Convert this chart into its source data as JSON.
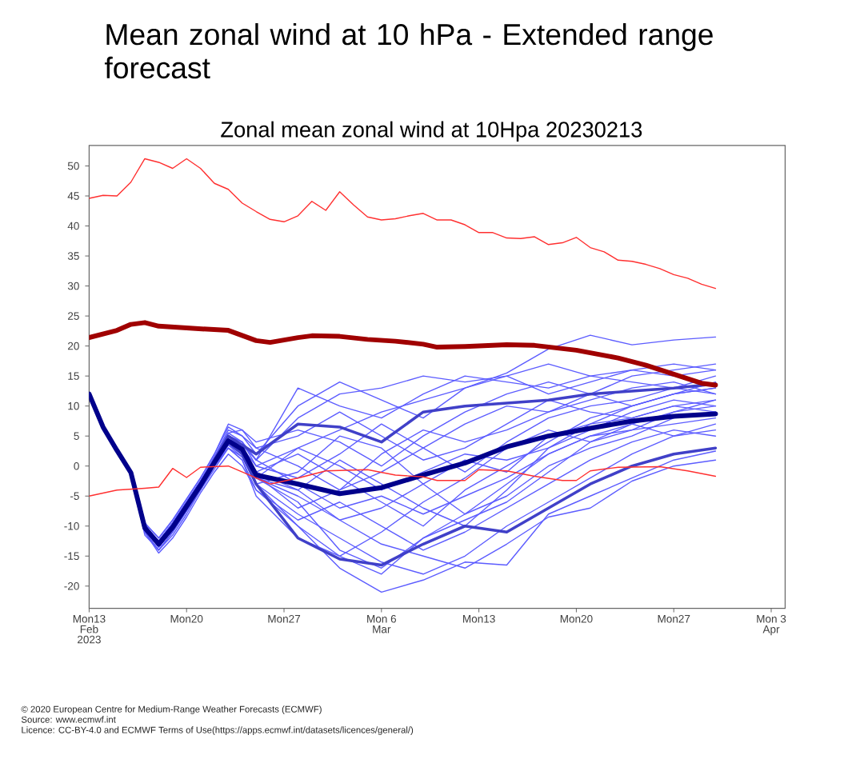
{
  "chart_data": {
    "type": "line",
    "title": "Mean zonal wind at 10 hPa - Extended range forecast",
    "subtitle": "Zonal mean zonal wind at 10Hpa 20230213",
    "annotations": [
      "© 2020 European Centre for Medium-Range Weather Forecasts (ECMWF)",
      "Source: www.ecmwf.int",
      "Licence: CC-BY-4.0 and ECMWF Terms of Use(https://apps.ecmwf.int/datasets/licences/general/)"
    ],
    "xlim": [
      "2023-02-13",
      "2023-04-04"
    ],
    "ylim": [
      -23.7,
      53.4
    ],
    "xticks": [
      {
        "value": "2023-02-13",
        "label": "Mon13 Feb 2023"
      },
      {
        "value": "2023-02-20",
        "label": "Mon20"
      },
      {
        "value": "2023-02-27",
        "label": "Mon27"
      },
      {
        "value": "2023-03-06",
        "label": "Mon 6 Mar"
      },
      {
        "value": "2023-03-13",
        "label": "Mon13"
      },
      {
        "value": "2023-03-20",
        "label": "Mon20"
      },
      {
        "value": "2023-03-27",
        "label": "Mon27"
      },
      {
        "value": "2023-04-03",
        "label": "Mon 3 Apr"
      }
    ],
    "yticks": [
      -20,
      -15,
      -10,
      -5,
      0,
      5,
      10,
      15,
      20,
      25,
      30,
      35,
      40,
      45,
      50
    ],
    "x": [
      "2023-02-13",
      "2023-02-14",
      "2023-02-15",
      "2023-02-16",
      "2023-02-17",
      "2023-02-18",
      "2023-02-19",
      "2023-02-20",
      "2023-02-21",
      "2023-02-22",
      "2023-02-23",
      "2023-02-24",
      "2023-02-25",
      "2023-02-28",
      "2023-03-03",
      "2023-03-06",
      "2023-03-09",
      "2023-03-12",
      "2023-03-15",
      "2023-03-18",
      "2023-03-21",
      "2023-03-24",
      "2023-03-27",
      "2023-03-30"
    ],
    "series": [
      {
        "color": "#5c5cff",
        "values": [
          null,
          null,
          null,
          -1.2,
          -10,
          -13.5,
          -10,
          -6.5,
          -3,
          1,
          5,
          3,
          -2,
          -6,
          -14,
          -17,
          -12,
          -8,
          -3,
          2,
          5,
          7,
          9,
          10
        ]
      },
      {
        "color": "#5c5cff",
        "values": [
          null,
          null,
          null,
          -0.8,
          -9.5,
          -12,
          -9,
          -5.5,
          -2,
          2,
          6.5,
          5,
          2,
          10,
          14,
          11,
          8,
          13,
          15,
          12,
          14,
          16,
          15,
          16
        ]
      },
      {
        "color": "#5c5cff",
        "values": [
          null,
          null,
          null,
          -1.4,
          -11,
          -14.5,
          -12,
          -8.5,
          -4.5,
          -1,
          2,
          0,
          -4,
          -10,
          -17,
          -21,
          -19,
          -16,
          -16.5,
          -8,
          -5,
          -2,
          1,
          2.5
        ]
      },
      {
        "color": "#5c5cff",
        "values": [
          null,
          null,
          null,
          -1,
          -10.5,
          -13,
          -10.5,
          -7,
          -3.5,
          0.5,
          4,
          2,
          -1,
          2,
          -2,
          -6,
          -10,
          -4,
          0,
          4,
          8,
          10,
          12,
          13
        ]
      },
      {
        "color": "#5c5cff",
        "values": [
          null,
          null,
          null,
          -1.1,
          -10,
          -12.5,
          -9.5,
          -6,
          -2.5,
          1.5,
          5.5,
          6,
          4,
          6,
          4,
          0,
          5,
          9,
          12,
          14,
          12,
          10,
          12,
          14
        ]
      },
      {
        "color": "#5c5cff",
        "values": [
          null,
          null,
          null,
          -1.3,
          -11.5,
          -14,
          -11,
          -7.5,
          -4,
          0,
          3,
          1,
          -5,
          -12,
          -15,
          -11,
          -6,
          -2,
          3,
          6,
          4,
          7,
          5,
          6
        ]
      },
      {
        "color": "#5c5cff",
        "values": [
          null,
          null,
          null,
          -1,
          -10,
          -12.5,
          -9.5,
          -6,
          -2.5,
          1,
          4.5,
          3.5,
          1,
          8,
          12,
          13,
          15,
          14,
          15,
          17,
          15,
          14,
          13,
          15
        ]
      },
      {
        "color": "#5c5cff",
        "values": [
          null,
          null,
          null,
          -1,
          -10,
          -13,
          -10,
          -6.5,
          -3,
          1,
          4,
          2.5,
          -2,
          3,
          6,
          9,
          11,
          13,
          15.5,
          19.5,
          21.8,
          20.2,
          21,
          21.5
        ]
      },
      {
        "color": "#5c5cff",
        "values": [
          null,
          null,
          null,
          -1.2,
          -10.5,
          -13.5,
          -10.5,
          -7,
          -3.5,
          0,
          3.5,
          2,
          -3,
          -8,
          -12,
          -16,
          -18,
          -15,
          -10,
          -6,
          -2,
          2,
          5,
          7
        ]
      },
      {
        "color": "#5c5cff",
        "values": [
          null,
          null,
          null,
          -1,
          -10,
          -13,
          -10,
          -6.5,
          -3,
          1,
          5,
          4,
          0,
          -2,
          2,
          7,
          3,
          -1,
          4,
          8,
          10,
          11,
          13,
          12
        ]
      },
      {
        "color": "#5c5cff",
        "values": [
          null,
          null,
          null,
          -1.1,
          -10.5,
          -13.5,
          -10.5,
          -7,
          -3,
          0.5,
          4.5,
          3,
          -1,
          -4,
          -9,
          -13,
          -15,
          -17,
          -13,
          -8.5,
          -7,
          -2.5,
          0,
          1
        ]
      },
      {
        "color": "#5c5cff",
        "values": [
          null,
          null,
          null,
          -1,
          -10,
          -12.5,
          -9.5,
          -6,
          -2.5,
          1.5,
          6,
          5,
          3,
          0,
          -4,
          -1,
          3,
          7,
          10,
          9,
          11,
          13,
          14,
          12
        ]
      },
      {
        "color": "#5c5cff",
        "values": [
          null,
          null,
          null,
          -1.2,
          -11,
          -14,
          -11,
          -7.5,
          -4,
          0,
          3,
          1.5,
          -3,
          -1,
          5,
          3,
          -3,
          -8,
          -5,
          0,
          3,
          5,
          8,
          9
        ]
      },
      {
        "color": "#5c5cff",
        "values": [
          null,
          null,
          null,
          -1,
          -10,
          -13,
          -10,
          -6.5,
          -3,
          1,
          4.5,
          2.5,
          -1.5,
          -7,
          -4,
          2,
          6,
          4,
          6,
          9,
          12,
          15,
          16,
          17
        ]
      },
      {
        "color": "#5c5cff",
        "values": [
          null,
          null,
          null,
          -0.9,
          -9.5,
          -12,
          -9,
          -5.5,
          -2,
          2,
          7,
          6,
          3,
          5,
          9,
          5,
          1,
          3,
          7,
          11,
          9,
          8,
          10,
          11
        ]
      },
      {
        "color": "#5c5cff",
        "values": [
          null,
          null,
          null,
          -1.3,
          -11,
          -14,
          -11.5,
          -8,
          -4,
          -0.5,
          3,
          1,
          -4,
          -9,
          -6,
          -10,
          -14,
          -11,
          -7,
          -3,
          1,
          4,
          6,
          5
        ]
      },
      {
        "color": "#5c5cff",
        "values": [
          null,
          null,
          null,
          -1,
          -10.5,
          -13.5,
          -10.5,
          -7,
          -3.5,
          0.5,
          4,
          3,
          0,
          3,
          0,
          -4,
          -1,
          2,
          1,
          3,
          6,
          9,
          11,
          10
        ]
      },
      {
        "color": "#5c5cff",
        "values": [
          null,
          null,
          null,
          -1.1,
          -10,
          -13,
          -10,
          -6.5,
          -3,
          1,
          5,
          4,
          1,
          -3,
          -7,
          -5,
          -8,
          -5,
          -2,
          2,
          5,
          6,
          7,
          8
        ]
      },
      {
        "color": "#5c5cff",
        "values": [
          null,
          null,
          null,
          -1,
          -10.5,
          -13,
          -10,
          -6.5,
          -3,
          1,
          4,
          2,
          -2,
          -5,
          -9,
          -7,
          -3,
          1,
          -1,
          5,
          7,
          10,
          12,
          13
        ]
      },
      {
        "color": "#5c5cff",
        "values": [
          null,
          null,
          null,
          -1.1,
          -10.5,
          -13.5,
          -10.5,
          -7,
          -3.5,
          0,
          3.5,
          1.5,
          -3,
          -10,
          -15,
          -18,
          -12,
          -9,
          -6,
          -1,
          4,
          6,
          9,
          11
        ]
      },
      {
        "color": "#5c5cff",
        "values": [
          null,
          null,
          null,
          -1,
          -10,
          -12.5,
          -9.5,
          -6,
          -2.5,
          1.5,
          5.5,
          4,
          1,
          13,
          10,
          8,
          12,
          15,
          14,
          13,
          15,
          16,
          17,
          16
        ]
      },
      {
        "color": "#5c5cff",
        "values": [
          null,
          null,
          null,
          -1.1,
          -10.5,
          -13,
          -10,
          -6.5,
          -3,
          0.5,
          4,
          2,
          -2,
          -4,
          1,
          -3,
          -7,
          -10,
          -4,
          3,
          7,
          8,
          10,
          9
        ]
      },
      {
        "color": "#4040c8",
        "values": [
          12,
          6.5,
          2.6,
          -1,
          -10,
          -13,
          -10,
          -6.5,
          -3,
          1,
          5,
          3.5,
          2,
          7,
          6.5,
          4,
          9,
          10,
          10.5,
          11,
          12,
          12.5,
          13,
          13.7
        ]
      },
      {
        "color": "#4040c8",
        "values": [
          12,
          6.5,
          2.5,
          -1,
          -10,
          -13,
          -10,
          -6.5,
          -3,
          0.5,
          4,
          2,
          -3,
          -12,
          -15.5,
          -16.5,
          -13,
          -10,
          -11,
          -7,
          -3,
          0,
          2,
          3
        ]
      },
      {
        "color": "#00008b",
        "values": [
          12,
          6.5,
          2.6,
          -1.1,
          -10.3,
          -13,
          -10.2,
          -6.7,
          -3.2,
          0.6,
          4.2,
          2.8,
          -1.5,
          -3,
          -4.6,
          -3.6,
          -1.5,
          0.5,
          3.2,
          5,
          6.3,
          7.5,
          8.3,
          8.7
        ]
      },
      {
        "color": "#ff3030",
        "x": [
          "2023-02-13",
          "2023-02-15",
          "2023-02-17",
          "2023-02-18",
          "2023-02-19",
          "2023-02-20",
          "2023-02-21",
          "2023-02-23",
          "2023-02-25",
          "2023-02-26",
          "2023-02-28",
          "2023-03-02",
          "2023-03-05",
          "2023-03-07",
          "2023-03-09",
          "2023-03-10",
          "2023-03-12",
          "2023-03-13",
          "2023-03-15",
          "2023-03-17",
          "2023-03-19",
          "2023-03-20",
          "2023-03-21",
          "2023-03-23",
          "2023-03-26",
          "2023-03-28",
          "2023-03-30"
        ],
        "values": [
          -5.0,
          -4.0,
          -3.7,
          -3.5,
          -0.4,
          -1.9,
          -0.2,
          0.0,
          -2.0,
          -3.0,
          -2.0,
          -0.8,
          -0.6,
          -1.5,
          -1.8,
          -2.4,
          -2.4,
          -0.6,
          -0.8,
          -1.7,
          -2.4,
          -2.4,
          -0.8,
          -0.2,
          -0.1,
          -0.8,
          -1.7
        ]
      },
      {
        "color": "#a00000",
        "x": [
          "2023-02-13",
          "2023-02-15",
          "2023-02-16",
          "2023-02-17",
          "2023-02-18",
          "2023-02-20",
          "2023-02-23",
          "2023-02-25",
          "2023-02-26",
          "2023-02-28",
          "2023-03-01",
          "2023-03-03",
          "2023-03-05",
          "2023-03-07",
          "2023-03-09",
          "2023-03-10",
          "2023-03-12",
          "2023-03-15",
          "2023-03-17",
          "2023-03-20",
          "2023-03-23",
          "2023-03-25",
          "2023-03-27",
          "2023-03-29",
          "2023-03-30"
        ],
        "values": [
          21.4,
          22.6,
          23.6,
          23.9,
          23.3,
          23.0,
          22.6,
          20.9,
          20.6,
          21.4,
          21.7,
          21.6,
          21.1,
          20.8,
          20.3,
          19.8,
          19.9,
          20.2,
          20.1,
          19.3,
          18.0,
          16.8,
          15.3,
          13.8,
          13.5
        ]
      },
      {
        "color": "#ff3030",
        "x": [
          "2023-02-13",
          "2023-02-14",
          "2023-02-15",
          "2023-02-16",
          "2023-02-17",
          "2023-02-18",
          "2023-02-19",
          "2023-02-20",
          "2023-02-21",
          "2023-02-22",
          "2023-02-23",
          "2023-02-24",
          "2023-02-25",
          "2023-02-26",
          "2023-02-27",
          "2023-02-28",
          "2023-03-01",
          "2023-03-02",
          "2023-03-03",
          "2023-03-04",
          "2023-03-05",
          "2023-03-06",
          "2023-03-07",
          "2023-03-08",
          "2023-03-09",
          "2023-03-10",
          "2023-03-11",
          "2023-03-12",
          "2023-03-13",
          "2023-03-14",
          "2023-03-15",
          "2023-03-16",
          "2023-03-17",
          "2023-03-18",
          "2023-03-19",
          "2023-03-20",
          "2023-03-21",
          "2023-03-22",
          "2023-03-23",
          "2023-03-24",
          "2023-03-25",
          "2023-03-26",
          "2023-03-27",
          "2023-03-28",
          "2023-03-29",
          "2023-03-30"
        ],
        "values": [
          44.6,
          45.1,
          45.0,
          47.3,
          51.2,
          50.6,
          49.6,
          51.2,
          49.6,
          47.1,
          46.1,
          43.8,
          42.4,
          41.1,
          40.7,
          41.7,
          44.1,
          42.6,
          45.7,
          43.5,
          41.5,
          41.0,
          41.2,
          41.7,
          42.1,
          41.0,
          41.0,
          40.2,
          38.9,
          38.9,
          38.0,
          37.9,
          38.2,
          36.9,
          37.2,
          38.1,
          36.4,
          35.7,
          34.3,
          34.1,
          33.6,
          32.9,
          31.9,
          31.3,
          30.3,
          29.6
        ]
      }
    ]
  }
}
